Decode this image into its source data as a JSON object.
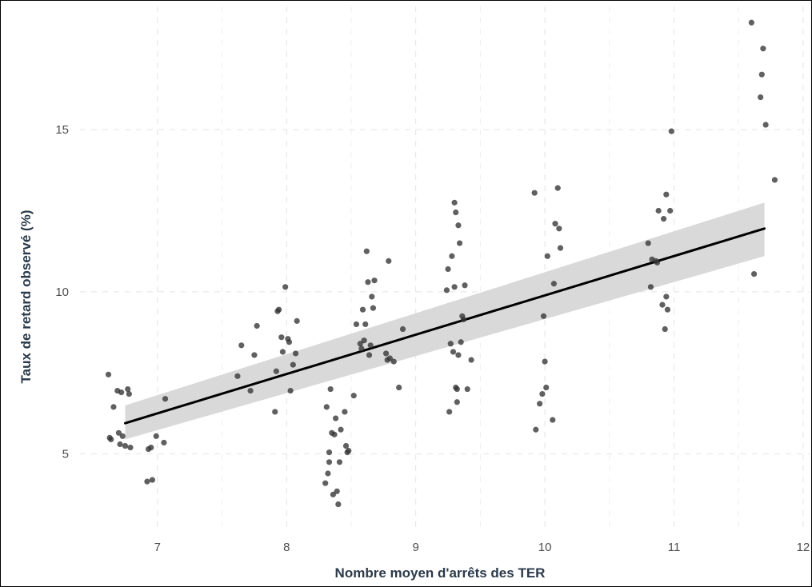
{
  "chart_data": {
    "type": "scatter",
    "title": "",
    "xlabel": "Nombre moyen d'arrêts des TER",
    "ylabel": "Taux de retard observé (%)",
    "xlim": [
      6.4,
      12.05
    ],
    "ylim": [
      2.6,
      18.8
    ],
    "x_ticks": [
      7,
      8,
      9,
      10,
      11,
      12
    ],
    "y_ticks": [
      5,
      10,
      15
    ],
    "grid": true,
    "grid_style": "dashed",
    "point_color": "#333333",
    "fit_line_color": "#000000",
    "band_color": "#d9d9d9",
    "regression": {
      "x": [
        6.75,
        11.7
      ],
      "y": [
        5.95,
        11.95
      ],
      "ci_lower": [
        5.45,
        11.1
      ],
      "ci_upper": [
        6.5,
        12.75
      ]
    },
    "points": [
      {
        "x": 6.62,
        "y": 7.45
      },
      {
        "x": 6.63,
        "y": 5.5
      },
      {
        "x": 6.64,
        "y": 5.45
      },
      {
        "x": 6.66,
        "y": 6.45
      },
      {
        "x": 6.69,
        "y": 6.95
      },
      {
        "x": 6.7,
        "y": 5.65
      },
      {
        "x": 6.72,
        "y": 6.9
      },
      {
        "x": 6.71,
        "y": 5.3
      },
      {
        "x": 6.73,
        "y": 5.55
      },
      {
        "x": 6.75,
        "y": 5.25
      },
      {
        "x": 6.77,
        "y": 7.0
      },
      {
        "x": 6.78,
        "y": 6.85
      },
      {
        "x": 6.79,
        "y": 5.2
      },
      {
        "x": 6.92,
        "y": 4.15
      },
      {
        "x": 6.93,
        "y": 5.15
      },
      {
        "x": 6.95,
        "y": 5.2
      },
      {
        "x": 6.96,
        "y": 4.2
      },
      {
        "x": 6.99,
        "y": 5.55
      },
      {
        "x": 7.05,
        "y": 5.35
      },
      {
        "x": 7.06,
        "y": 6.7
      },
      {
        "x": 7.62,
        "y": 7.4
      },
      {
        "x": 7.65,
        "y": 8.35
      },
      {
        "x": 7.72,
        "y": 6.95
      },
      {
        "x": 7.75,
        "y": 8.05
      },
      {
        "x": 7.77,
        "y": 8.95
      },
      {
        "x": 7.91,
        "y": 6.3
      },
      {
        "x": 7.92,
        "y": 7.55
      },
      {
        "x": 7.93,
        "y": 9.4
      },
      {
        "x": 7.94,
        "y": 9.45
      },
      {
        "x": 7.96,
        "y": 8.6
      },
      {
        "x": 7.97,
        "y": 8.15
      },
      {
        "x": 7.99,
        "y": 10.15
      },
      {
        "x": 8.01,
        "y": 8.55
      },
      {
        "x": 8.02,
        "y": 8.45
      },
      {
        "x": 8.03,
        "y": 6.95
      },
      {
        "x": 8.05,
        "y": 7.75
      },
      {
        "x": 8.07,
        "y": 8.1
      },
      {
        "x": 8.08,
        "y": 9.1
      },
      {
        "x": 8.3,
        "y": 4.1
      },
      {
        "x": 8.31,
        "y": 6.45
      },
      {
        "x": 8.32,
        "y": 4.4
      },
      {
        "x": 8.33,
        "y": 4.75
      },
      {
        "x": 8.33,
        "y": 5.05
      },
      {
        "x": 8.34,
        "y": 7.0
      },
      {
        "x": 8.35,
        "y": 5.65
      },
      {
        "x": 8.36,
        "y": 3.75
      },
      {
        "x": 8.37,
        "y": 5.6
      },
      {
        "x": 8.38,
        "y": 6.1
      },
      {
        "x": 8.39,
        "y": 3.85
      },
      {
        "x": 8.4,
        "y": 3.45
      },
      {
        "x": 8.41,
        "y": 4.75
      },
      {
        "x": 8.42,
        "y": 5.75
      },
      {
        "x": 8.45,
        "y": 6.3
      },
      {
        "x": 8.46,
        "y": 5.25
      },
      {
        "x": 8.47,
        "y": 5.05
      },
      {
        "x": 8.48,
        "y": 5.1
      },
      {
        "x": 8.52,
        "y": 6.8
      },
      {
        "x": 8.54,
        "y": 9.0
      },
      {
        "x": 8.57,
        "y": 8.4
      },
      {
        "x": 8.58,
        "y": 8.25
      },
      {
        "x": 8.59,
        "y": 9.45
      },
      {
        "x": 8.6,
        "y": 8.5
      },
      {
        "x": 8.61,
        "y": 9.0
      },
      {
        "x": 8.62,
        "y": 11.25
      },
      {
        "x": 8.63,
        "y": 10.3
      },
      {
        "x": 8.64,
        "y": 8.05
      },
      {
        "x": 8.65,
        "y": 8.35
      },
      {
        "x": 8.66,
        "y": 9.85
      },
      {
        "x": 8.67,
        "y": 9.5
      },
      {
        "x": 8.68,
        "y": 10.35
      },
      {
        "x": 8.77,
        "y": 8.1
      },
      {
        "x": 8.78,
        "y": 7.9
      },
      {
        "x": 8.8,
        "y": 7.95
      },
      {
        "x": 8.79,
        "y": 10.95
      },
      {
        "x": 8.83,
        "y": 7.85
      },
      {
        "x": 8.87,
        "y": 7.05
      },
      {
        "x": 8.9,
        "y": 8.85
      },
      {
        "x": 9.24,
        "y": 10.05
      },
      {
        "x": 9.25,
        "y": 10.7
      },
      {
        "x": 9.26,
        "y": 6.3
      },
      {
        "x": 9.27,
        "y": 8.4
      },
      {
        "x": 9.28,
        "y": 11.1
      },
      {
        "x": 9.29,
        "y": 8.15
      },
      {
        "x": 9.3,
        "y": 12.75
      },
      {
        "x": 9.3,
        "y": 10.15
      },
      {
        "x": 9.31,
        "y": 12.45
      },
      {
        "x": 9.31,
        "y": 7.05
      },
      {
        "x": 9.32,
        "y": 6.6
      },
      {
        "x": 9.32,
        "y": 7.0
      },
      {
        "x": 9.33,
        "y": 12.05
      },
      {
        "x": 9.33,
        "y": 8.05
      },
      {
        "x": 9.34,
        "y": 11.5
      },
      {
        "x": 9.35,
        "y": 8.45
      },
      {
        "x": 9.36,
        "y": 9.25
      },
      {
        "x": 9.37,
        "y": 9.15
      },
      {
        "x": 9.38,
        "y": 10.2
      },
      {
        "x": 9.4,
        "y": 7.0
      },
      {
        "x": 9.43,
        "y": 7.9
      },
      {
        "x": 9.92,
        "y": 13.05
      },
      {
        "x": 9.93,
        "y": 5.75
      },
      {
        "x": 9.96,
        "y": 6.55
      },
      {
        "x": 9.98,
        "y": 6.85
      },
      {
        "x": 9.99,
        "y": 9.25
      },
      {
        "x": 10.0,
        "y": 7.85
      },
      {
        "x": 10.01,
        "y": 7.05
      },
      {
        "x": 10.02,
        "y": 11.1
      },
      {
        "x": 10.06,
        "y": 6.05
      },
      {
        "x": 10.07,
        "y": 10.25
      },
      {
        "x": 10.08,
        "y": 12.1
      },
      {
        "x": 10.1,
        "y": 13.2
      },
      {
        "x": 10.11,
        "y": 11.95
      },
      {
        "x": 10.12,
        "y": 11.35
      },
      {
        "x": 10.8,
        "y": 11.5
      },
      {
        "x": 10.82,
        "y": 10.15
      },
      {
        "x": 10.83,
        "y": 11.0
      },
      {
        "x": 10.86,
        "y": 10.95
      },
      {
        "x": 10.87,
        "y": 10.9
      },
      {
        "x": 10.88,
        "y": 12.5
      },
      {
        "x": 10.91,
        "y": 9.6
      },
      {
        "x": 10.92,
        "y": 12.25
      },
      {
        "x": 10.93,
        "y": 8.85
      },
      {
        "x": 10.94,
        "y": 9.85
      },
      {
        "x": 10.94,
        "y": 13.0
      },
      {
        "x": 10.95,
        "y": 9.45
      },
      {
        "x": 10.97,
        "y": 12.5
      },
      {
        "x": 10.98,
        "y": 14.95
      },
      {
        "x": 11.6,
        "y": 18.3
      },
      {
        "x": 11.62,
        "y": 10.55
      },
      {
        "x": 11.67,
        "y": 16.0
      },
      {
        "x": 11.68,
        "y": 16.7
      },
      {
        "x": 11.69,
        "y": 17.5
      },
      {
        "x": 11.71,
        "y": 15.15
      },
      {
        "x": 11.78,
        "y": 13.45
      }
    ]
  }
}
